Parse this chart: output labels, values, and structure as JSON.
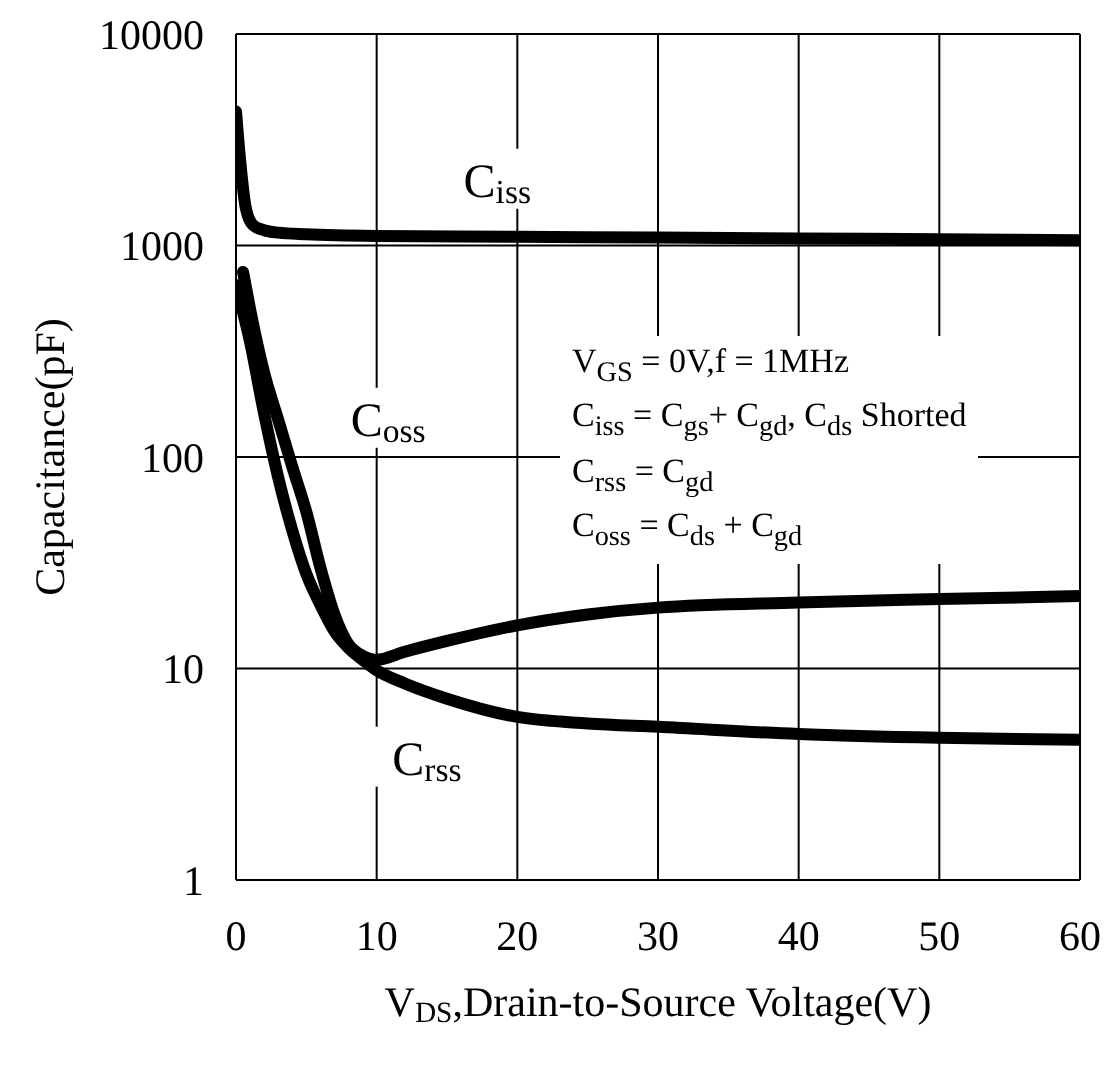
{
  "chart_data": {
    "type": "line",
    "xlabel": "V$_{DS}$,Drain-to-Source Voltage(V)",
    "ylabel": "Capacitance(pF)",
    "xlim": [
      0,
      60
    ],
    "xticks": [
      0,
      10,
      20,
      30,
      40,
      50,
      60
    ],
    "ylim": [
      1,
      10000
    ],
    "yticks": [
      1,
      10,
      100,
      1000,
      10000
    ],
    "log": "y",
    "grid": true,
    "marker": "none",
    "line_style": "solid",
    "series": [
      {
        "name": "C$_{iss}$",
        "color": "#000000",
        "x": [
          0,
          0.3,
          0.7,
          1.2,
          2,
          3,
          5,
          10,
          20,
          30,
          40,
          50,
          60
        ],
        "values": [
          4300,
          2500,
          1500,
          1250,
          1180,
          1150,
          1130,
          1110,
          1100,
          1090,
          1080,
          1070,
          1060
        ]
      },
      {
        "name": "C$_{oss}$",
        "color": "#000000",
        "x": [
          0.5,
          1,
          2,
          3,
          4,
          5,
          6,
          7,
          8,
          9,
          10,
          12,
          15,
          20,
          25,
          30,
          40,
          50,
          60
        ],
        "values": [
          750,
          500,
          250,
          150,
          90,
          55,
          30,
          18,
          13,
          11.5,
          11,
          12,
          13.5,
          16,
          18,
          19.4,
          20.5,
          21.3,
          22
        ]
      },
      {
        "name": "C$_{rss}$",
        "color": "#000000",
        "x": [
          0,
          1,
          2,
          3,
          4,
          5,
          6,
          7,
          8,
          9,
          10,
          12,
          15,
          20,
          25,
          30,
          40,
          50,
          60
        ],
        "values": [
          650,
          350,
          160,
          80,
          45,
          28,
          20,
          15,
          12.5,
          11,
          9.8,
          8.5,
          7.2,
          5.9,
          5.5,
          5.3,
          4.9,
          4.7,
          4.6
        ]
      }
    ],
    "annotations": [
      "V$_{GS}$ =  0V,f = 1MHz",
      "C$_{iss}$ =  C$_{gs}$+ C$_{gd}$, C$_{ds}$  Shorted",
      "C$_{rss}$ =  C$_{gd}$",
      "C$_{oss}$ =  C$_{ds}$ + C$_{gd}$"
    ]
  }
}
